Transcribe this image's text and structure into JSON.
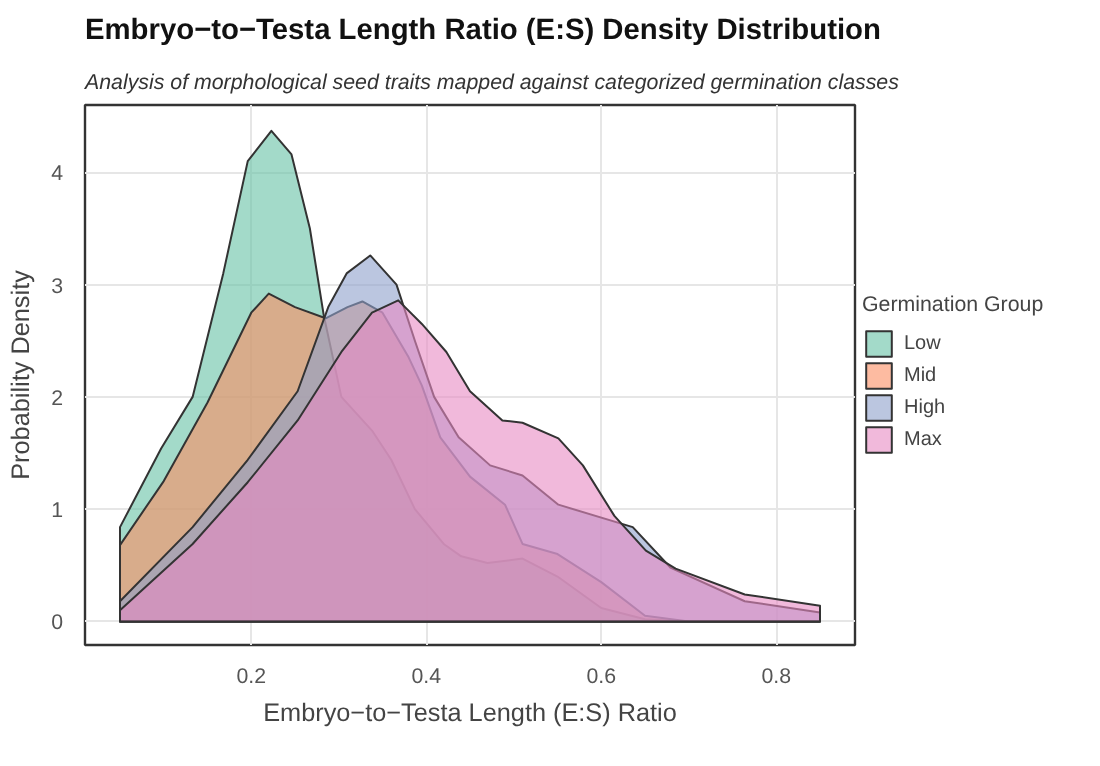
{
  "chart_data": {
    "type": "area",
    "title": "Embryo−to−Testa Length Ratio (E:S) Density Distribution",
    "subtitle": "Analysis of morphological seed traits mapped against categorized germination classes",
    "xlabel": "Embryo−to−Testa Length (E:S) Ratio",
    "ylabel": "Probability Density",
    "legend_title": "Germination Group",
    "legend": "right",
    "grid": true,
    "xlim": [
      0.01,
      0.89
    ],
    "ylim": [
      -0.21,
      4.6
    ],
    "xticks": [
      0.2,
      0.4,
      0.6,
      0.8
    ],
    "yticks": [
      0,
      1,
      2,
      3,
      4
    ],
    "series": [
      {
        "name": "Low",
        "color": "#66c2a5",
        "x": [
          0.05,
          0.097,
          0.133,
          0.168,
          0.196,
          0.223,
          0.246,
          0.267,
          0.283,
          0.303,
          0.338,
          0.36,
          0.387,
          0.42,
          0.44,
          0.47,
          0.51,
          0.55,
          0.6,
          0.65,
          0.7,
          0.85
        ],
        "values": [
          0.84,
          1.54,
          2.0,
          3.1,
          4.1,
          4.37,
          4.16,
          3.5,
          2.72,
          2.0,
          1.7,
          1.44,
          1.0,
          0.69,
          0.58,
          0.52,
          0.56,
          0.4,
          0.12,
          0.02,
          0,
          0
        ]
      },
      {
        "name": "Mid",
        "color": "#fc8d62",
        "x": [
          0.05,
          0.1,
          0.15,
          0.2,
          0.22,
          0.25,
          0.285,
          0.31,
          0.327,
          0.35,
          0.38,
          0.395,
          0.416,
          0.45,
          0.49,
          0.51,
          0.55,
          0.6,
          0.65,
          0.7,
          0.85
        ],
        "values": [
          0.68,
          1.25,
          1.95,
          2.75,
          2.92,
          2.8,
          2.7,
          2.8,
          2.85,
          2.75,
          2.35,
          2.1,
          1.64,
          1.29,
          1.04,
          0.69,
          0.6,
          0.35,
          0.05,
          0,
          0
        ]
      },
      {
        "name": "High",
        "color": "#8da0cb",
        "x": [
          0.05,
          0.133,
          0.196,
          0.253,
          0.288,
          0.309,
          0.336,
          0.366,
          0.387,
          0.409,
          0.437,
          0.473,
          0.51,
          0.551,
          0.636,
          0.679,
          0.764,
          0.85
        ],
        "values": [
          0.18,
          0.84,
          1.44,
          2.05,
          2.8,
          3.1,
          3.26,
          3.0,
          2.5,
          2.0,
          1.64,
          1.39,
          1.3,
          1.04,
          0.84,
          0.48,
          0.18,
          0.08
        ]
      },
      {
        "name": "Max",
        "color": "#e78ac3",
        "x": [
          0.05,
          0.133,
          0.196,
          0.253,
          0.303,
          0.338,
          0.368,
          0.395,
          0.423,
          0.45,
          0.487,
          0.51,
          0.551,
          0.579,
          0.615,
          0.651,
          0.685,
          0.764,
          0.85
        ],
        "values": [
          0.1,
          0.69,
          1.24,
          1.79,
          2.4,
          2.75,
          2.86,
          2.65,
          2.4,
          2.05,
          1.79,
          1.77,
          1.63,
          1.39,
          0.94,
          0.63,
          0.47,
          0.24,
          0.14
        ]
      }
    ]
  }
}
